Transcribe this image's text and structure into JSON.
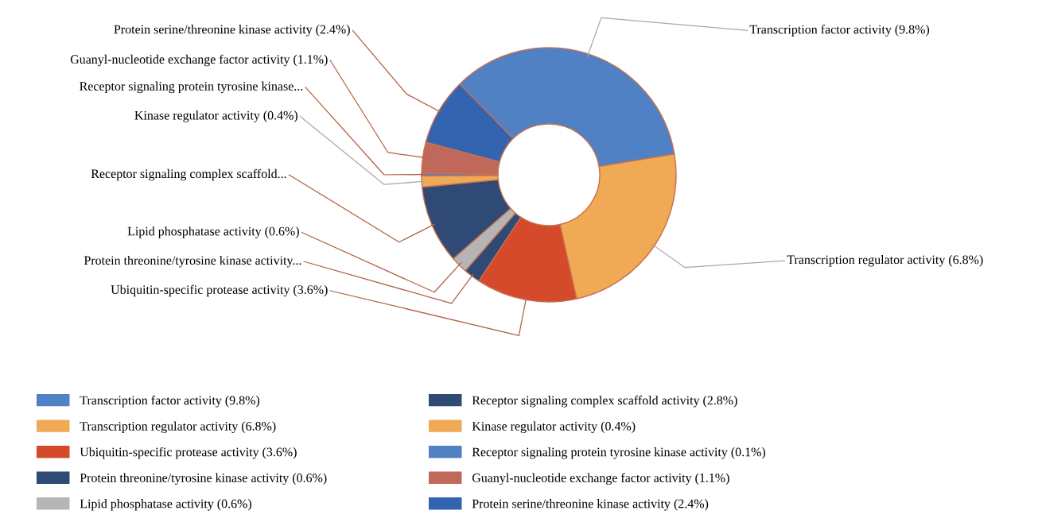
{
  "chart_data": {
    "type": "donut",
    "categories": [
      "Transcription factor activity (9.8%)",
      "Transcription regulator activity (6.8%)",
      "Ubiquitin-specific protease activity (3.6%)",
      "Protein threonine/tyrosine kinase activity (0.6%)",
      "Lipid phosphatase activity (0.6%)",
      "Receptor signaling complex scaffold activity (2.8%)",
      "Kinase regulator activity (0.4%)",
      "Receptor signaling protein tyrosine kinase activity (0.1%)",
      "Guanyl-nucleotide exchange factor activity (1.1%)",
      "Protein serine/threonine kinase activity (2.4%)"
    ],
    "values": [
      9.8,
      6.8,
      3.6,
      0.6,
      0.6,
      2.8,
      0.4,
      0.1,
      1.1,
      2.4
    ],
    "colors": [
      "#4f81c4",
      "#f0a954",
      "#d44a2a",
      "#2e4a75",
      "#b5b5b5",
      "#2e4a75",
      "#f0a954",
      "#4f81c4",
      "#c0695a",
      "#3464b0"
    ],
    "value_labels": [
      "Transcription factor activity (9.8%)",
      "Transcription regulator activity (6.8%)",
      "Ubiquitin-specific protease activity (3.6%)",
      "Protein threonine/tyrosine kinase activity...",
      "Lipid phosphatase activity (0.6%)",
      "Receptor signaling complex scaffold...",
      "Kinase regulator activity (0.4%)",
      "Receptor signaling protein tyrosine kinase...",
      "Guanyl-nucleotide exchange factor activity (1.1%)",
      "Protein serine/threonine kinase activity (2.4%)"
    ],
    "legend": "bottom"
  }
}
